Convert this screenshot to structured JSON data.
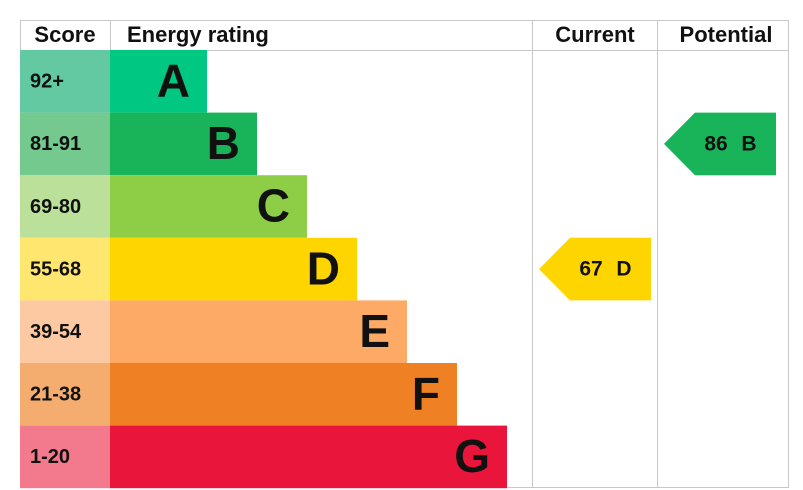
{
  "chart_data": {
    "type": "epc",
    "headers": {
      "score": "Score",
      "rating": "Energy rating",
      "current": "Current",
      "potential": "Potential"
    },
    "bands": [
      {
        "score": "92+",
        "letter": "A",
        "color": "#00c781",
        "score_color": "#62c9a2"
      },
      {
        "score": "81-91",
        "letter": "B",
        "color": "#19b459",
        "score_color": "#74c98f"
      },
      {
        "score": "69-80",
        "letter": "C",
        "color": "#8dce46",
        "score_color": "#bbe09a"
      },
      {
        "score": "55-68",
        "letter": "D",
        "color": "#ffd500",
        "score_color": "#ffe66e"
      },
      {
        "score": "39-54",
        "letter": "E",
        "color": "#fcaa65",
        "score_color": "#fdc9a2"
      },
      {
        "score": "21-38",
        "letter": "F",
        "color": "#ef8023",
        "score_color": "#f4ad6f"
      },
      {
        "score": "1-20",
        "letter": "G",
        "color": "#e9153b",
        "score_color": "#f27a8c"
      }
    ],
    "current": {
      "value": 67,
      "letter": "D"
    },
    "potential": {
      "value": 86,
      "letter": "B"
    }
  }
}
